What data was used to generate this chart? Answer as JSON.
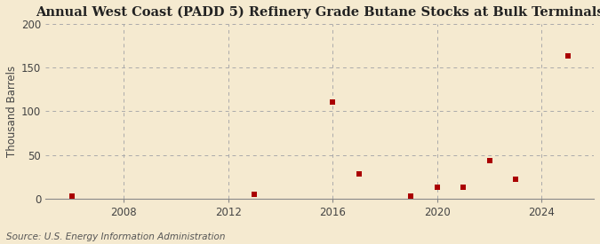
{
  "title": "Annual West Coast (PADD 5) Refinery Grade Butane Stocks at Bulk Terminals",
  "ylabel": "Thousand Barrels",
  "source": "Source: U.S. Energy Information Administration",
  "background_color": "#f5ead0",
  "data_color": "#aa0000",
  "x_values": [
    2006,
    2013,
    2016,
    2017,
    2019,
    2020,
    2021,
    2022,
    2023,
    2025
  ],
  "y_values": [
    3,
    5,
    110,
    28,
    3,
    13,
    13,
    44,
    22,
    163
  ],
  "xlim": [
    2005,
    2026
  ],
  "ylim": [
    0,
    200
  ],
  "yticks": [
    0,
    50,
    100,
    150,
    200
  ],
  "xticks": [
    2008,
    2012,
    2016,
    2020,
    2024
  ],
  "marker": "s",
  "marker_size": 18,
  "title_fontsize": 10.5,
  "label_fontsize": 8.5,
  "tick_fontsize": 8.5,
  "source_fontsize": 7.5
}
